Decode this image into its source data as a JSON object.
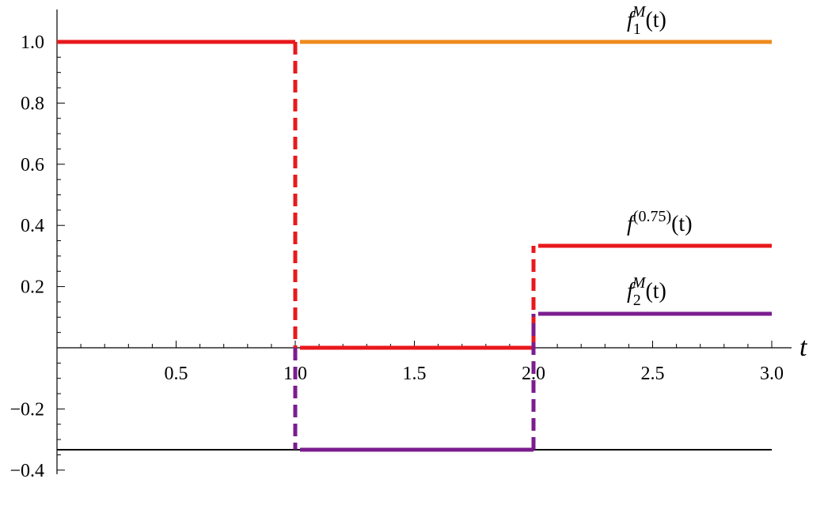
{
  "chart_data": {
    "type": "line",
    "title": "",
    "xlabel": "t",
    "ylabel": "",
    "xlim": [
      0,
      3.0
    ],
    "ylim": [
      -0.4,
      1.05
    ],
    "grid": false,
    "x_ticks": [
      0.5,
      1.0,
      1.5,
      2.0,
      2.5,
      3.0
    ],
    "x_tick_labels": [
      "0.5",
      "1.0",
      "1.5",
      "2.0",
      "2.5",
      "3.0"
    ],
    "y_ticks": [
      -0.4,
      -0.2,
      0.2,
      0.4,
      0.6,
      0.8,
      1.0
    ],
    "y_tick_labels": [
      "−0.4",
      "−0.2",
      "0.2",
      "0.4",
      "0.6",
      "0.8",
      "1.0"
    ],
    "reference_line": {
      "y": -0.3333,
      "color": "#000000"
    },
    "series": [
      {
        "id": "f1M",
        "label_base": "f",
        "label_sub": "1",
        "label_sup": "M",
        "label_arg": "(t)",
        "color": "#EE8A1C",
        "segments": [
          {
            "x": [
              1.0,
              3.0
            ],
            "y": [
              1.0,
              1.0
            ]
          }
        ],
        "jumps": []
      },
      {
        "id": "f075",
        "label_base": "f",
        "label_sub": "",
        "label_sup": "(0.75)",
        "label_arg": "(t)",
        "color": "#E8191C",
        "segments": [
          {
            "x": [
              0.0,
              1.0
            ],
            "y": [
              1.0,
              1.0
            ]
          },
          {
            "x": [
              1.0,
              2.0
            ],
            "y": [
              0.0,
              0.0
            ]
          },
          {
            "x": [
              2.0,
              3.0
            ],
            "y": [
              0.3333,
              0.3333
            ]
          }
        ],
        "jumps": [
          {
            "x": 1.0,
            "y": [
              1.0,
              0.0
            ]
          },
          {
            "x": 2.0,
            "y": [
              0.0,
              0.3333
            ]
          }
        ]
      },
      {
        "id": "f2M",
        "label_base": "f",
        "label_sub": "2",
        "label_sup": "M",
        "label_arg": "(t)",
        "color": "#7B1D8E",
        "segments": [
          {
            "x": [
              1.0,
              2.0
            ],
            "y": [
              -0.3333,
              -0.3333
            ]
          },
          {
            "x": [
              2.0,
              3.0
            ],
            "y": [
              0.1111,
              0.1111
            ]
          }
        ],
        "jumps": [
          {
            "x": 1.0,
            "y": [
              0.0,
              -0.3333
            ]
          },
          {
            "x": 2.0,
            "y": [
              -0.3333,
              0.1111
            ]
          }
        ]
      }
    ]
  }
}
